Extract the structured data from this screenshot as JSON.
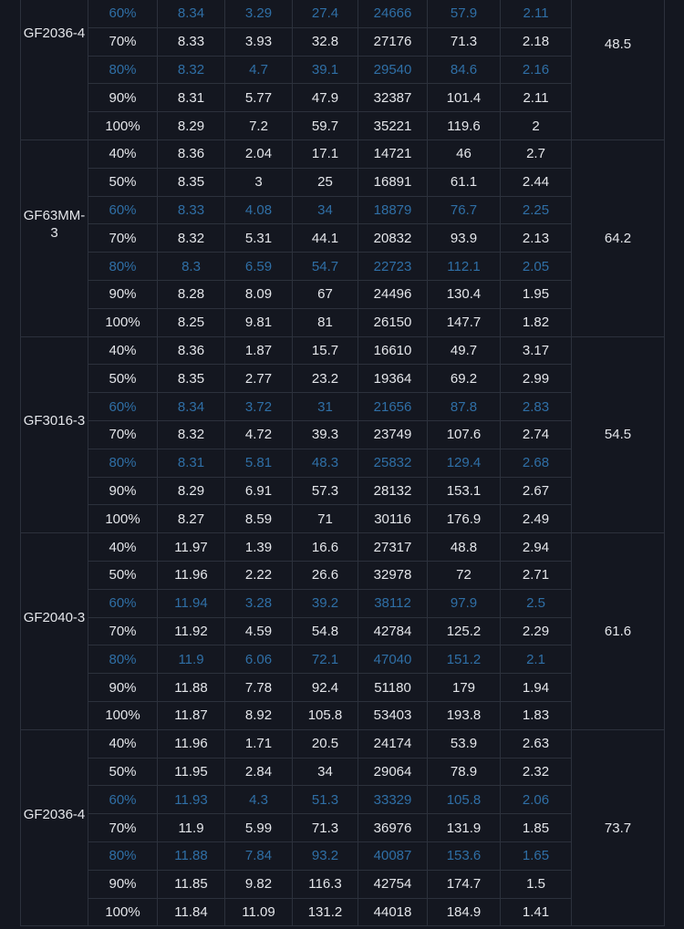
{
  "colors": {
    "background": "#141720",
    "text": "#e4e6ea",
    "highlight": "#2f6fa6",
    "border": "#2c313c"
  },
  "groups": [
    {
      "model": "GF2036-4",
      "value": "48.5",
      "rows": [
        [
          "60%",
          "8.34",
          "3.29",
          "27.4",
          "24666",
          "57.9",
          "2.11"
        ],
        [
          "70%",
          "8.33",
          "3.93",
          "32.8",
          "27176",
          "71.3",
          "2.18"
        ],
        [
          "80%",
          "8.32",
          "4.7",
          "39.1",
          "29540",
          "84.6",
          "2.16"
        ],
        [
          "90%",
          "8.31",
          "5.77",
          "47.9",
          "32387",
          "101.4",
          "2.11"
        ],
        [
          "100%",
          "8.29",
          "7.2",
          "59.7",
          "35221",
          "119.6",
          "2"
        ]
      ]
    },
    {
      "model": "GF63MM-3",
      "value": "64.2",
      "rows": [
        [
          "40%",
          "8.36",
          "2.04",
          "17.1",
          "14721",
          "46",
          "2.7"
        ],
        [
          "50%",
          "8.35",
          "3",
          "25",
          "16891",
          "61.1",
          "2.44"
        ],
        [
          "60%",
          "8.33",
          "4.08",
          "34",
          "18879",
          "76.7",
          "2.25"
        ],
        [
          "70%",
          "8.32",
          "5.31",
          "44.1",
          "20832",
          "93.9",
          "2.13"
        ],
        [
          "80%",
          "8.3",
          "6.59",
          "54.7",
          "22723",
          "112.1",
          "2.05"
        ],
        [
          "90%",
          "8.28",
          "8.09",
          "67",
          "24496",
          "130.4",
          "1.95"
        ],
        [
          "100%",
          "8.25",
          "9.81",
          "81",
          "26150",
          "147.7",
          "1.82"
        ]
      ]
    },
    {
      "model": "GF3016-3",
      "value": "54.5",
      "rows": [
        [
          "40%",
          "8.36",
          "1.87",
          "15.7",
          "16610",
          "49.7",
          "3.17"
        ],
        [
          "50%",
          "8.35",
          "2.77",
          "23.2",
          "19364",
          "69.2",
          "2.99"
        ],
        [
          "60%",
          "8.34",
          "3.72",
          "31",
          "21656",
          "87.8",
          "2.83"
        ],
        [
          "70%",
          "8.32",
          "4.72",
          "39.3",
          "23749",
          "107.6",
          "2.74"
        ],
        [
          "80%",
          "8.31",
          "5.81",
          "48.3",
          "25832",
          "129.4",
          "2.68"
        ],
        [
          "90%",
          "8.29",
          "6.91",
          "57.3",
          "28132",
          "153.1",
          "2.67"
        ],
        [
          "100%",
          "8.27",
          "8.59",
          "71",
          "30116",
          "176.9",
          "2.49"
        ]
      ]
    },
    {
      "model": "GF2040-3",
      "value": "61.6",
      "rows": [
        [
          "40%",
          "11.97",
          "1.39",
          "16.6",
          "27317",
          "48.8",
          "2.94"
        ],
        [
          "50%",
          "11.96",
          "2.22",
          "26.6",
          "32978",
          "72",
          "2.71"
        ],
        [
          "60%",
          "11.94",
          "3.28",
          "39.2",
          "38112",
          "97.9",
          "2.5"
        ],
        [
          "70%",
          "11.92",
          "4.59",
          "54.8",
          "42784",
          "125.2",
          "2.29"
        ],
        [
          "80%",
          "11.9",
          "6.06",
          "72.1",
          "47040",
          "151.2",
          "2.1"
        ],
        [
          "90%",
          "11.88",
          "7.78",
          "92.4",
          "51180",
          "179",
          "1.94"
        ],
        [
          "100%",
          "11.87",
          "8.92",
          "105.8",
          "53403",
          "193.8",
          "1.83"
        ]
      ]
    },
    {
      "model": "GF2036-4",
      "value": "73.7",
      "rows": [
        [
          "40%",
          "11.96",
          "1.71",
          "20.5",
          "24174",
          "53.9",
          "2.63"
        ],
        [
          "50%",
          "11.95",
          "2.84",
          "34",
          "29064",
          "78.9",
          "2.32"
        ],
        [
          "60%",
          "11.93",
          "4.3",
          "51.3",
          "33329",
          "105.8",
          "2.06"
        ],
        [
          "70%",
          "11.9",
          "5.99",
          "71.3",
          "36976",
          "131.9",
          "1.85"
        ],
        [
          "80%",
          "11.88",
          "7.84",
          "93.2",
          "40087",
          "153.6",
          "1.65"
        ],
        [
          "90%",
          "11.85",
          "9.82",
          "116.3",
          "42754",
          "174.7",
          "1.5"
        ],
        [
          "100%",
          "11.84",
          "11.09",
          "131.2",
          "44018",
          "184.9",
          "1.41"
        ]
      ]
    }
  ]
}
